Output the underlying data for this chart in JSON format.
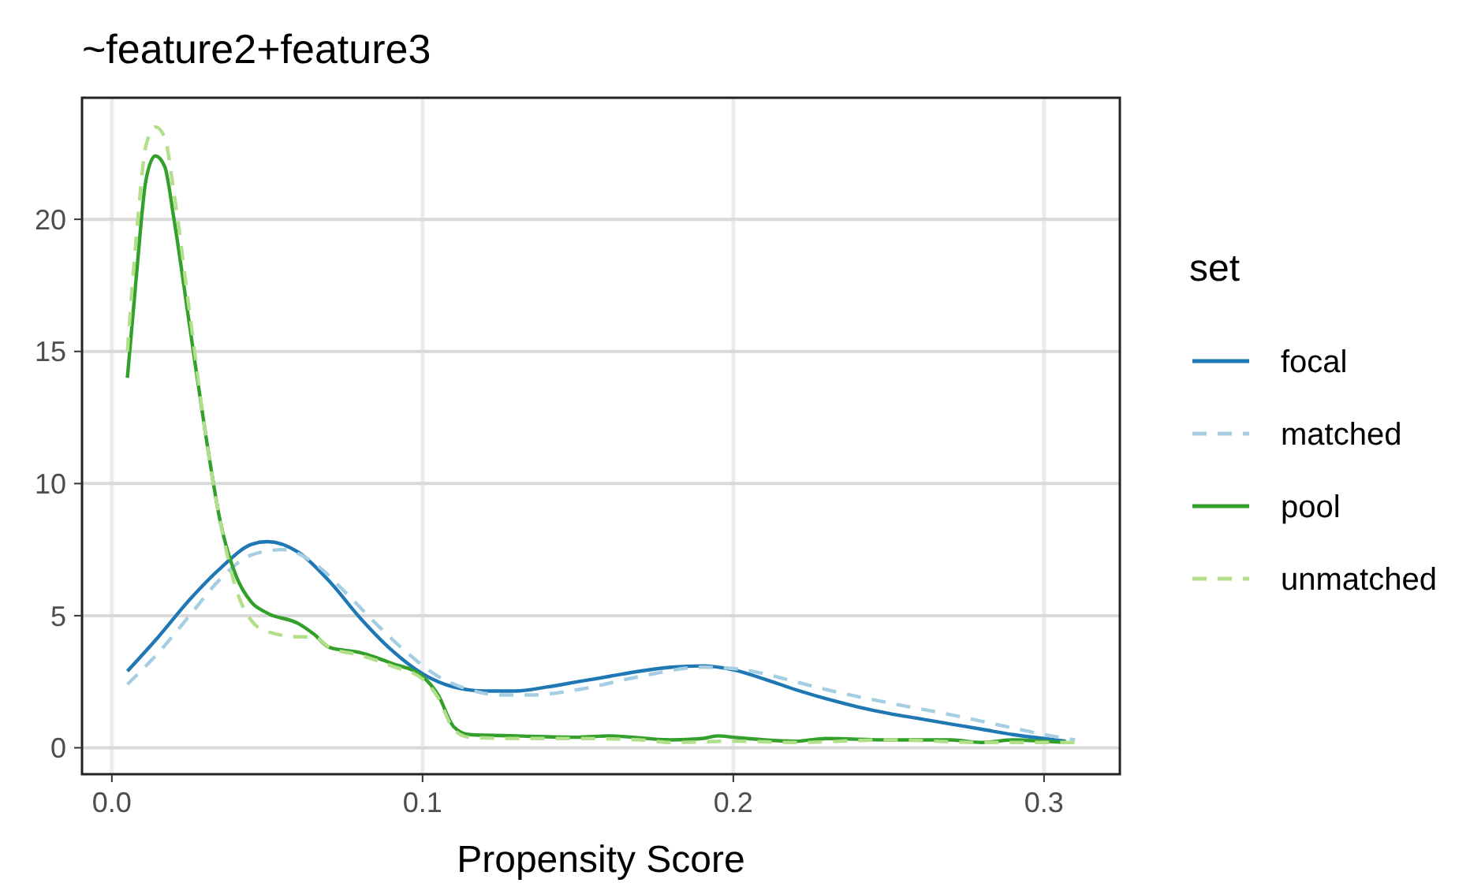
{
  "chart_data": {
    "type": "line",
    "title": "~feature2+feature3",
    "xlabel": "Propensity Score",
    "legend_title": "set",
    "legend": "right",
    "grid": true,
    "xlim": [
      -0.0096,
      0.3244
    ],
    "xticks": [
      {
        "value": 0,
        "label": "0.0"
      },
      0.1,
      0.2,
      0.3
    ],
    "ylim": [
      -1.0,
      24.6
    ],
    "yticks": [
      0,
      5,
      10,
      15,
      20
    ],
    "series": [
      {
        "name": "focal",
        "color": "#1f78b4",
        "line_style": "solid",
        "x": [
          0.005,
          0.015,
          0.025,
          0.035,
          0.045,
          0.05,
          0.06,
          0.07,
          0.08,
          0.09,
          0.1,
          0.11,
          0.12,
          0.13,
          0.14,
          0.15,
          0.16,
          0.17,
          0.18,
          0.19,
          0.2,
          0.21,
          0.22,
          0.23,
          0.24,
          0.25,
          0.26,
          0.27,
          0.28,
          0.29,
          0.3,
          0.307
        ],
        "values": [
          2.9,
          4.2,
          5.6,
          6.8,
          7.7,
          7.8,
          7.4,
          6.3,
          4.9,
          3.7,
          2.8,
          2.3,
          2.15,
          2.15,
          2.3,
          2.5,
          2.7,
          2.9,
          3.05,
          3.1,
          2.95,
          2.6,
          2.2,
          1.85,
          1.55,
          1.3,
          1.1,
          0.9,
          0.7,
          0.5,
          0.35,
          0.25
        ]
      },
      {
        "name": "matched",
        "color": "#a6cee3",
        "line_style": "dashed",
        "x": [
          0.005,
          0.015,
          0.025,
          0.035,
          0.045,
          0.055,
          0.065,
          0.075,
          0.085,
          0.095,
          0.105,
          0.115,
          0.125,
          0.135,
          0.15,
          0.17,
          0.19,
          0.2,
          0.21,
          0.22,
          0.23,
          0.25,
          0.27,
          0.29,
          0.3,
          0.31
        ],
        "values": [
          2.4,
          3.6,
          5.0,
          6.4,
          7.3,
          7.5,
          7.0,
          5.9,
          4.7,
          3.6,
          2.7,
          2.2,
          2.0,
          2.0,
          2.2,
          2.7,
          3.05,
          3.0,
          2.8,
          2.5,
          2.2,
          1.7,
          1.25,
          0.75,
          0.5,
          0.3
        ]
      },
      {
        "name": "pool",
        "color": "#33a02c",
        "line_style": "solid",
        "x": [
          0.005,
          0.008,
          0.011,
          0.014,
          0.017,
          0.02,
          0.025,
          0.03,
          0.035,
          0.04,
          0.045,
          0.05,
          0.06,
          0.065,
          0.07,
          0.08,
          0.09,
          0.1,
          0.105,
          0.11,
          0.115,
          0.13,
          0.15,
          0.16,
          0.18,
          0.19,
          0.195,
          0.2,
          0.21,
          0.22,
          0.23,
          0.25,
          0.27,
          0.28,
          0.29,
          0.3,
          0.307
        ],
        "values": [
          14,
          18,
          21.5,
          22.4,
          22,
          20,
          16,
          12,
          8.5,
          6.5,
          5.5,
          5.1,
          4.7,
          4.3,
          3.8,
          3.6,
          3.2,
          2.7,
          2.0,
          0.8,
          0.5,
          0.45,
          0.4,
          0.45,
          0.3,
          0.35,
          0.45,
          0.4,
          0.3,
          0.25,
          0.35,
          0.3,
          0.3,
          0.2,
          0.3,
          0.25,
          0.2
        ]
      },
      {
        "name": "unmatched",
        "color": "#b2df8a",
        "line_style": "dashed",
        "x": [
          0.005,
          0.008,
          0.011,
          0.014,
          0.017,
          0.02,
          0.025,
          0.03,
          0.035,
          0.04,
          0.045,
          0.05,
          0.06,
          0.065,
          0.07,
          0.08,
          0.09,
          0.1,
          0.105,
          0.11,
          0.115,
          0.13,
          0.15,
          0.17,
          0.18,
          0.2,
          0.22,
          0.25,
          0.28,
          0.3,
          0.31
        ],
        "values": [
          15,
          19.5,
          22.8,
          23.5,
          23.1,
          21,
          16.5,
          12,
          8.5,
          6,
          4.8,
          4.4,
          4.2,
          4.2,
          3.8,
          3.5,
          3.1,
          2.6,
          1.9,
          0.7,
          0.4,
          0.35,
          0.35,
          0.3,
          0.2,
          0.25,
          0.2,
          0.3,
          0.2,
          0.2,
          0.2
        ]
      }
    ]
  }
}
